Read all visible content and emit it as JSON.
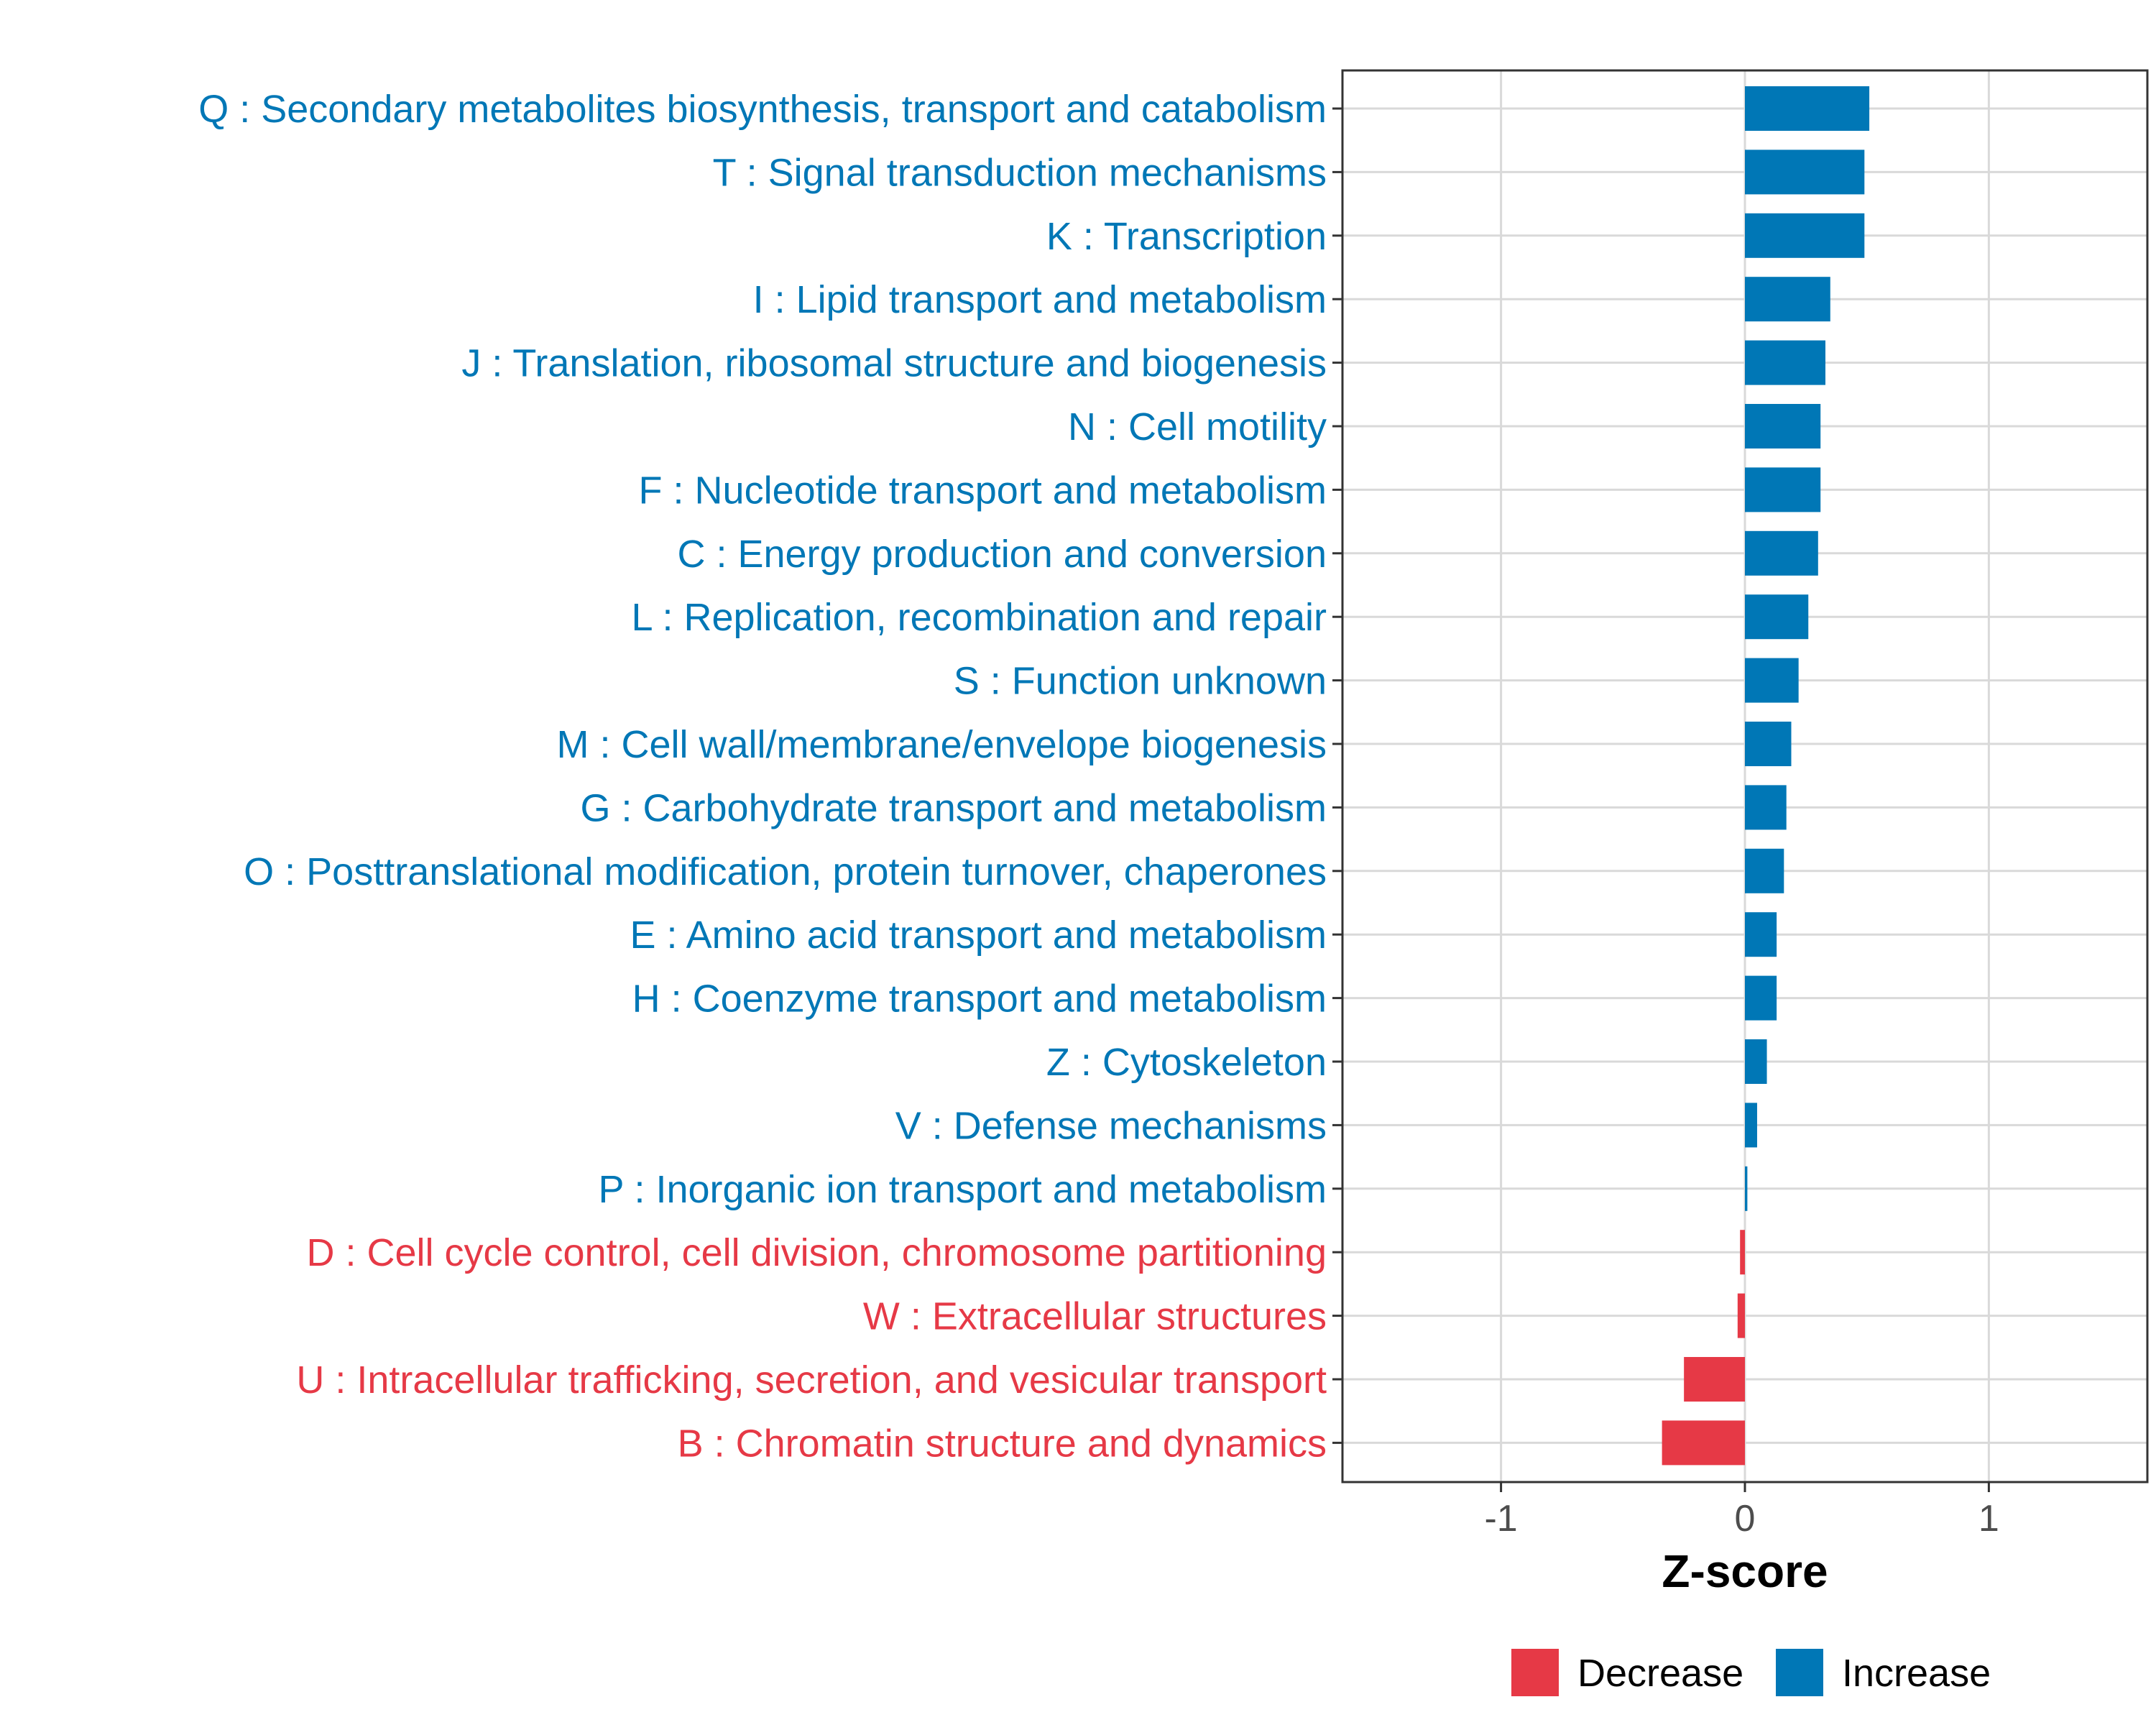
{
  "chart_data": {
    "type": "bar",
    "orientation": "horizontal",
    "title": "",
    "xlabel": "Z-score",
    "ylabel": "",
    "xlim": [
      -1.65,
      1.65
    ],
    "x_ticks": [
      -1,
      0,
      1
    ],
    "x_tick_labels": [
      "-1",
      "0",
      "1"
    ],
    "grid": true,
    "legend_position": "bottom",
    "colors": {
      "Decrease": "#e63946",
      "Increase": "#0077b6"
    },
    "legend": [
      {
        "name": "Decrease",
        "color": "#e63946"
      },
      {
        "name": "Increase",
        "color": "#0077b6"
      }
    ],
    "categories": [
      "Q : Secondary metabolites biosynthesis, transport and catabolism",
      "T : Signal transduction mechanisms",
      "K : Transcription",
      "I : Lipid transport and metabolism",
      "J : Translation, ribosomal structure and biogenesis",
      "N : Cell motility",
      "F : Nucleotide transport and metabolism",
      "C : Energy production and conversion",
      "L : Replication, recombination and repair",
      "S : Function unknown",
      "M : Cell wall/membrane/envelope biogenesis",
      "G : Carbohydrate transport and metabolism",
      "O : Posttranslational modification, protein turnover, chaperones",
      "E : Amino acid transport and metabolism",
      "H : Coenzyme transport and metabolism",
      "Z : Cytoskeleton",
      "V : Defense mechanisms",
      "P : Inorganic ion transport and metabolism",
      "D : Cell cycle control, cell division, chromosome partitioning",
      "W : Extracellular structures",
      "U : Intracellular trafficking, secretion, and vesicular transport",
      "B : Chromatin structure and dynamics"
    ],
    "values": [
      0.51,
      0.49,
      0.49,
      0.35,
      0.33,
      0.31,
      0.31,
      0.3,
      0.26,
      0.22,
      0.19,
      0.17,
      0.16,
      0.13,
      0.13,
      0.09,
      0.05,
      0.01,
      -0.02,
      -0.03,
      -0.25,
      -0.34
    ]
  }
}
